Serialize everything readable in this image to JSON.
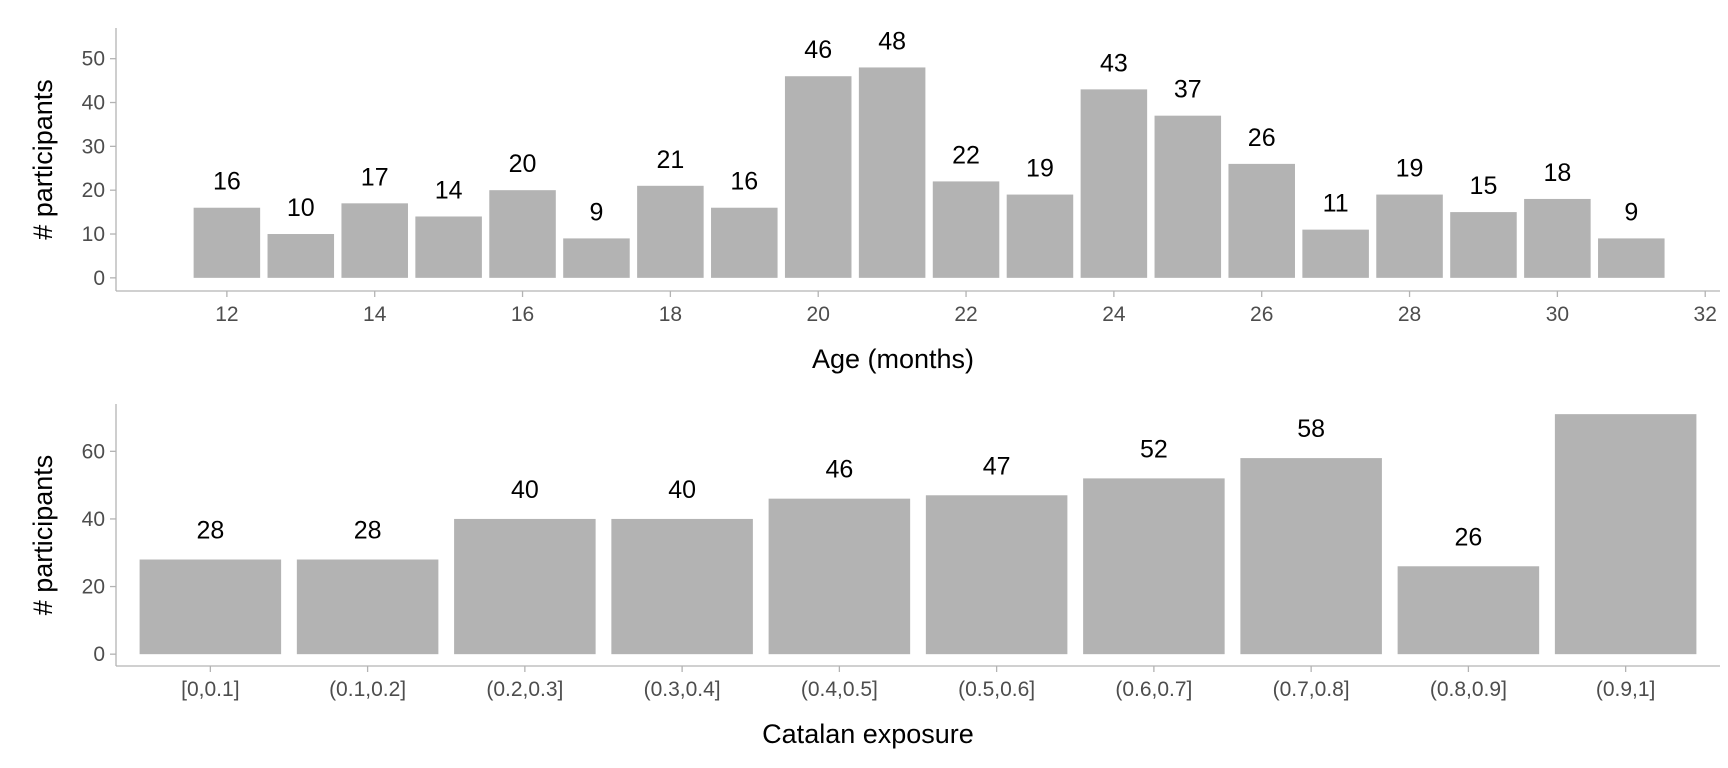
{
  "chart_data": [
    {
      "type": "bar",
      "xlabel": "Age (months)",
      "ylabel": "# participants",
      "x": [
        12,
        13,
        14,
        15,
        16,
        17,
        18,
        19,
        20,
        21,
        22,
        23,
        24,
        25,
        26,
        27,
        28,
        29,
        30,
        31
      ],
      "values": [
        16,
        10,
        17,
        14,
        20,
        9,
        21,
        16,
        46,
        48,
        22,
        19,
        43,
        37,
        26,
        11,
        19,
        15,
        18,
        9
      ],
      "data_labels": [
        "16",
        "10",
        "17",
        "14",
        "20",
        "9",
        "21",
        "16",
        "46",
        "48",
        "22",
        "19",
        "43",
        "37",
        "26",
        "11",
        "19",
        "15",
        "18",
        "9"
      ],
      "xticks": [
        "12",
        "14",
        "16",
        "18",
        "20",
        "22",
        "24",
        "26",
        "28",
        "30",
        "32"
      ],
      "yticks": [
        "0",
        "10",
        "20",
        "30",
        "40",
        "50"
      ],
      "xlim": [
        10.5,
        32.2
      ],
      "ylim": [
        -3,
        57
      ],
      "bar_color": "#b3b3b3",
      "grid": false
    },
    {
      "type": "bar",
      "xlabel": "Catalan exposure",
      "ylabel": "# participants",
      "categories": [
        "[0,0.1]",
        "(0.1,0.2]",
        "(0.2,0.3]",
        "(0.3,0.4]",
        "(0.4,0.5]",
        "(0.5,0.6]",
        "(0.6,0.7]",
        "(0.7,0.8]",
        "(0.8,0.9]",
        "(0.9,1]"
      ],
      "values": [
        28,
        28,
        40,
        40,
        46,
        47,
        52,
        58,
        26,
        71
      ],
      "data_labels": [
        "28",
        "28",
        "40",
        "40",
        "46",
        "47",
        "52",
        "58",
        "26",
        ""
      ],
      "yticks": [
        "0",
        "20",
        "40",
        "60"
      ],
      "ylim": [
        -3.5,
        74
      ],
      "bar_color": "#b3b3b3",
      "grid": false
    }
  ]
}
